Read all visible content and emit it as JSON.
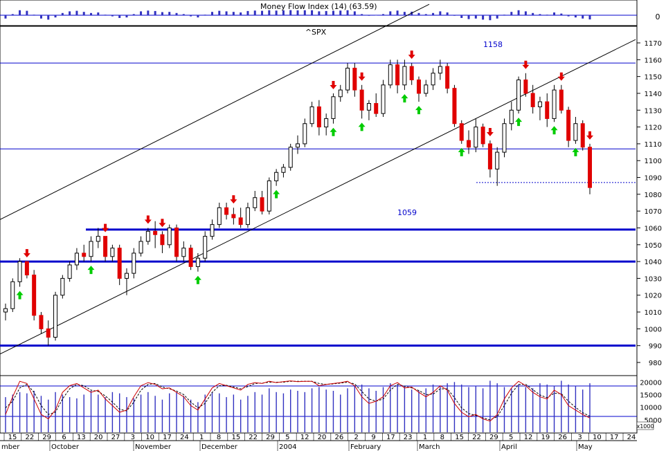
{
  "header": {
    "top_indicator_text": "Money Flow Index (14) (63.59)",
    "symbol": "^SPX",
    "zero_label": "0"
  },
  "annotations": {
    "level_high": "1158",
    "level_mid": "1059"
  },
  "price_axis": {
    "ticks": [
      1170,
      1160,
      1150,
      1140,
      1130,
      1120,
      1110,
      1100,
      1090,
      1080,
      1070,
      1060,
      1050,
      1040,
      1030,
      1020,
      1010,
      1000,
      990,
      980
    ]
  },
  "volume_axis": {
    "ticks": [
      "20000",
      "15000",
      "10000",
      "5000"
    ],
    "unit_box": "x1000"
  },
  "date_axis": {
    "day_labels": [
      "15",
      "22",
      "29",
      "6",
      "13",
      "20",
      "27",
      "3",
      "10",
      "17",
      "24",
      "1",
      "8",
      "15",
      "22",
      "29",
      "5",
      "12",
      "20",
      "26",
      "2",
      "9",
      "17",
      "23",
      "1",
      "8",
      "15",
      "22",
      "29",
      "5",
      "12",
      "19",
      "26",
      "3",
      "10",
      "17",
      "24"
    ],
    "month_labels": [
      "mber",
      "October",
      "November",
      "December",
      "2004",
      "February",
      "March",
      "April",
      "May"
    ]
  },
  "colors": {
    "up_candle": "#ffffff",
    "down_candle": "#e00000",
    "level_line": "#0000cc",
    "up_arrow": "#00cc00",
    "down_arrow": "#e00000",
    "volume_bar": "#3030c0",
    "stoch_k": "#cc0000",
    "stoch_d": "#000000"
  },
  "chart_data": {
    "type": "candlestick",
    "title": "^SPX",
    "ylim": [
      975,
      1175
    ],
    "horizontal_levels": [
      1158,
      1107,
      1059,
      1040,
      990
    ],
    "dotted_level": 1087,
    "candles": [
      [
        1010,
        1015,
        1005,
        1012
      ],
      [
        1012,
        1030,
        1010,
        1028
      ],
      [
        1028,
        1042,
        1025,
        1040
      ],
      [
        1040,
        1040,
        1030,
        1032
      ],
      [
        1032,
        1035,
        1005,
        1008
      ],
      [
        1008,
        1010,
        997,
        1000
      ],
      [
        1000,
        1005,
        990,
        995
      ],
      [
        995,
        1022,
        993,
        1020
      ],
      [
        1020,
        1032,
        1018,
        1030
      ],
      [
        1030,
        1040,
        1028,
        1038
      ],
      [
        1038,
        1048,
        1035,
        1045
      ],
      [
        1045,
        1050,
        1040,
        1043
      ],
      [
        1043,
        1055,
        1040,
        1052
      ],
      [
        1052,
        1060,
        1048,
        1055
      ],
      [
        1055,
        1055,
        1040,
        1043
      ],
      [
        1043,
        1050,
        1040,
        1048
      ],
      [
        1048,
        1050,
        1026,
        1030
      ],
      [
        1030,
        1036,
        1020,
        1033
      ],
      [
        1033,
        1048,
        1030,
        1045
      ],
      [
        1045,
        1055,
        1043,
        1052
      ],
      [
        1052,
        1060,
        1050,
        1058
      ],
      [
        1058,
        1064,
        1048,
        1056
      ],
      [
        1056,
        1058,
        1045,
        1050
      ],
      [
        1050,
        1062,
        1048,
        1060
      ],
      [
        1060,
        1062,
        1040,
        1043
      ],
      [
        1043,
        1052,
        1040,
        1048
      ],
      [
        1048,
        1050,
        1035,
        1037
      ],
      [
        1037,
        1045,
        1034,
        1042
      ],
      [
        1042,
        1058,
        1040,
        1055
      ],
      [
        1055,
        1065,
        1053,
        1062
      ],
      [
        1062,
        1075,
        1060,
        1072
      ],
      [
        1072,
        1075,
        1065,
        1068
      ],
      [
        1068,
        1072,
        1062,
        1066
      ],
      [
        1066,
        1072,
        1060,
        1062
      ],
      [
        1062,
        1075,
        1060,
        1072
      ],
      [
        1072,
        1082,
        1070,
        1078
      ],
      [
        1078,
        1082,
        1068,
        1070
      ],
      [
        1070,
        1090,
        1068,
        1088
      ],
      [
        1088,
        1095,
        1085,
        1093
      ],
      [
        1093,
        1098,
        1090,
        1096
      ],
      [
        1096,
        1110,
        1094,
        1108
      ],
      [
        1108,
        1115,
        1104,
        1110
      ],
      [
        1110,
        1125,
        1108,
        1122
      ],
      [
        1122,
        1135,
        1120,
        1132
      ],
      [
        1132,
        1136,
        1115,
        1120
      ],
      [
        1120,
        1128,
        1115,
        1125
      ],
      [
        1125,
        1140,
        1122,
        1138
      ],
      [
        1138,
        1145,
        1135,
        1142
      ],
      [
        1142,
        1158,
        1140,
        1155
      ],
      [
        1155,
        1158,
        1138,
        1142
      ],
      [
        1142,
        1145,
        1125,
        1130
      ],
      [
        1130,
        1136,
        1124,
        1134
      ],
      [
        1134,
        1140,
        1126,
        1128
      ],
      [
        1128,
        1148,
        1126,
        1145
      ],
      [
        1145,
        1160,
        1143,
        1157
      ],
      [
        1157,
        1160,
        1140,
        1145
      ],
      [
        1145,
        1160,
        1142,
        1156
      ],
      [
        1156,
        1158,
        1145,
        1148
      ],
      [
        1148,
        1150,
        1135,
        1140
      ],
      [
        1140,
        1148,
        1138,
        1145
      ],
      [
        1145,
        1155,
        1142,
        1152
      ],
      [
        1152,
        1160,
        1148,
        1156
      ],
      [
        1156,
        1158,
        1140,
        1143
      ],
      [
        1143,
        1145,
        1120,
        1122
      ],
      [
        1122,
        1124,
        1110,
        1112
      ],
      [
        1112,
        1118,
        1104,
        1108
      ],
      [
        1108,
        1125,
        1105,
        1120
      ],
      [
        1120,
        1122,
        1108,
        1110
      ],
      [
        1110,
        1112,
        1090,
        1095
      ],
      [
        1095,
        1108,
        1085,
        1105
      ],
      [
        1105,
        1125,
        1102,
        1122
      ],
      [
        1122,
        1135,
        1118,
        1130
      ],
      [
        1130,
        1150,
        1128,
        1148
      ],
      [
        1148,
        1152,
        1138,
        1140
      ],
      [
        1140,
        1145,
        1128,
        1132
      ],
      [
        1132,
        1138,
        1124,
        1135
      ],
      [
        1135,
        1140,
        1120,
        1125
      ],
      [
        1125,
        1145,
        1123,
        1142
      ],
      [
        1142,
        1145,
        1128,
        1130
      ],
      [
        1130,
        1132,
        1108,
        1112
      ],
      [
        1112,
        1126,
        1110,
        1122
      ],
      [
        1122,
        1124,
        1106,
        1108
      ],
      [
        1108,
        1110,
        1080,
        1084
      ]
    ],
    "volume": [
      14000,
      15000,
      16000,
      15500,
      16500,
      14500,
      13000,
      16000,
      15000,
      14000,
      13500,
      15000,
      16500,
      15000,
      14000,
      16000,
      15500,
      14000,
      13500,
      15000,
      16000,
      14500,
      13000,
      15500,
      16000,
      14500,
      13000,
      12000,
      15000,
      16000,
      15500,
      14000,
      15000,
      13000,
      14500,
      16000,
      15000,
      17500,
      16000,
      15500,
      17000,
      16500,
      16000,
      17500,
      18000,
      17000,
      16500,
      15000,
      17500,
      18500,
      19000,
      17500,
      16500,
      18000,
      19500,
      19000,
      18500,
      17000,
      16500,
      17500,
      19000,
      18500,
      19500,
      20000,
      19000,
      18000,
      18500,
      17500,
      20500,
      19500,
      18000,
      17500,
      19000,
      18000,
      17500,
      19500,
      19000,
      18500,
      20500,
      19000,
      18500,
      17000,
      19500
    ],
    "stoch_k": [
      20,
      60,
      95,
      90,
      55,
      20,
      10,
      30,
      70,
      85,
      90,
      80,
      70,
      75,
      55,
      40,
      25,
      30,
      60,
      85,
      92,
      88,
      78,
      80,
      70,
      60,
      40,
      30,
      55,
      80,
      90,
      85,
      80,
      75,
      88,
      92,
      90,
      95,
      92,
      94,
      96,
      94,
      95,
      95,
      85,
      88,
      90,
      92,
      95,
      85,
      60,
      45,
      50,
      60,
      85,
      92,
      80,
      82,
      70,
      60,
      70,
      85,
      75,
      45,
      25,
      15,
      20,
      10,
      5,
      20,
      55,
      80,
      95,
      85,
      70,
      60,
      55,
      75,
      65,
      40,
      30,
      20,
      12
    ],
    "stoch_d": [
      35,
      50,
      80,
      88,
      70,
      40,
      20,
      25,
      55,
      78,
      88,
      85,
      75,
      72,
      62,
      48,
      32,
      28,
      48,
      75,
      88,
      90,
      82,
      78,
      73,
      65,
      48,
      35,
      45,
      70,
      85,
      86,
      82,
      78,
      83,
      90,
      91,
      93,
      93,
      93,
      95,
      95,
      95,
      95,
      90,
      88,
      89,
      91,
      93,
      89,
      72,
      55,
      50,
      55,
      75,
      88,
      84,
      80,
      74,
      65,
      66,
      78,
      78,
      58,
      35,
      22,
      18,
      12,
      8,
      15,
      40,
      68,
      88,
      88,
      76,
      64,
      58,
      68,
      67,
      50,
      36,
      24,
      16
    ],
    "up_arrows_at": [
      2,
      12,
      27,
      38,
      46,
      50,
      56,
      58,
      64,
      72,
      77,
      80
    ],
    "down_arrows_at": [
      3,
      14,
      20,
      22,
      32,
      46,
      50,
      57,
      68,
      73,
      78,
      82
    ]
  }
}
